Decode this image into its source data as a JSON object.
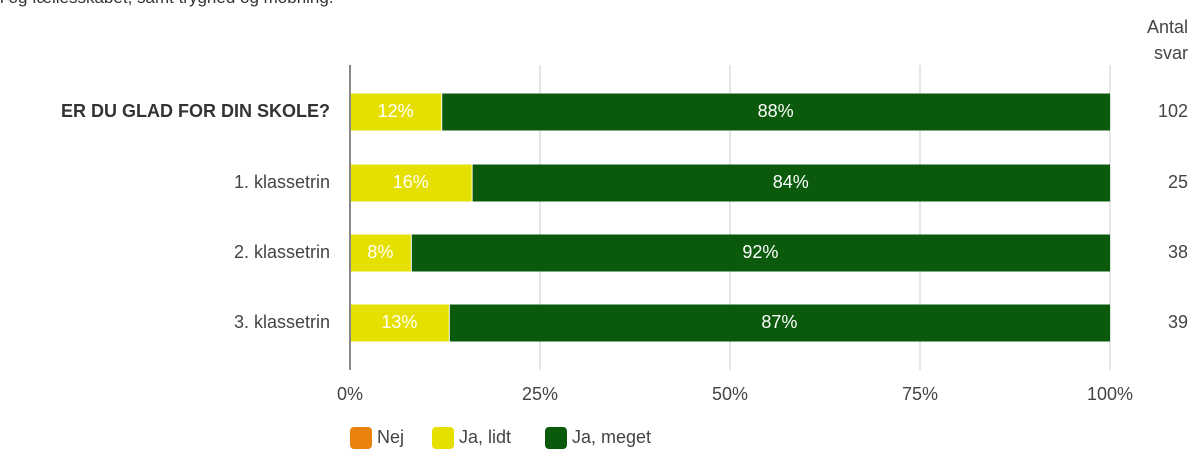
{
  "subtitle": "i og fællesskabet, samt tryghed og mobning.",
  "count_header": "Antal svar",
  "counts": [
    102,
    25,
    38,
    39
  ],
  "chart_data": {
    "type": "stacked-bar-horizontal",
    "categories": [
      "ER DU GLAD FOR DIN SKOLE?",
      "1. klassetrin",
      "2. klassetrin",
      "3. klassetrin"
    ],
    "series": [
      {
        "name": "Nej",
        "color": "#e8820c",
        "values": [
          0,
          0,
          0,
          0
        ]
      },
      {
        "name": "Ja, lidt",
        "color": "#e6e000",
        "values": [
          12,
          16,
          8,
          13
        ],
        "value_labels": [
          "12%",
          "16%",
          "8%",
          "13%"
        ]
      },
      {
        "name": "Ja, meget",
        "color": "#0b5a0b",
        "values": [
          88,
          84,
          92,
          87
        ],
        "value_labels": [
          "88%",
          "84%",
          "92%",
          "87%"
        ]
      }
    ],
    "xlim": [
      0,
      100
    ],
    "xticks": [
      {
        "value": 0,
        "label": "0%"
      },
      {
        "value": 25,
        "label": "25%"
      },
      {
        "value": 50,
        "label": "50%"
      },
      {
        "value": 75,
        "label": "75%"
      },
      {
        "value": 100,
        "label": "100%"
      }
    ],
    "grid": true
  }
}
